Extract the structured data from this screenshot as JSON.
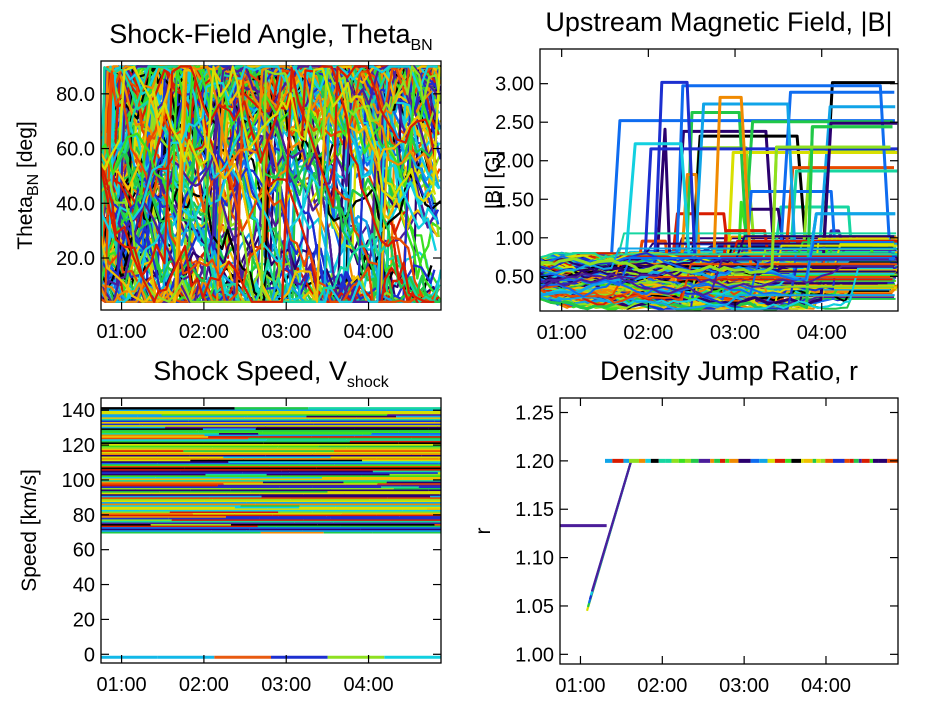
{
  "chart_data": [
    {
      "id": "theta",
      "type": "line",
      "title": "Shock-Field Angle, Theta",
      "title_sub": "BN",
      "ylabel": "Theta",
      "ylabel_sub": "BN",
      "ylabel_unit": " [deg]",
      "xlim": [
        0.75,
        4.88
      ],
      "ylim": [
        1.0,
        92.0
      ],
      "x_ticks": [
        1,
        2,
        3,
        4
      ],
      "x_tick_labels": [
        "01:00",
        "02:00",
        "03:00",
        "04:00"
      ],
      "y_ticks": [
        20,
        40,
        60,
        80
      ],
      "y_tick_labels": [
        "20.0",
        "40.0",
        "60.0",
        "80.0"
      ],
      "grid": false,
      "legend": "none",
      "series_count": 300,
      "palette": "rainbow",
      "note_pattern": "hundreds of field-line traces bounded between ~5 and 90 deg"
    },
    {
      "id": "bfield",
      "type": "line",
      "title": "Upstream Magnetic Field, |B|",
      "ylabel": "|B| [G]",
      "xlim": [
        0.75,
        4.88
      ],
      "ylim": [
        0.05,
        3.45
      ],
      "x_ticks": [
        1,
        2,
        3,
        4
      ],
      "x_tick_labels": [
        "01:00",
        "02:00",
        "03:00",
        "04:00"
      ],
      "y_ticks": [
        0.5,
        1.0,
        1.5,
        2.0,
        2.5,
        3.0
      ],
      "y_tick_labels": [
        "0.50",
        "1.00",
        "1.50",
        "2.00",
        "2.50",
        "3.00"
      ],
      "grid": false,
      "legend": "none",
      "series_count": 300,
      "palette": "rainbow"
    },
    {
      "id": "vshock",
      "type": "line",
      "title": "Shock Speed, V",
      "title_sub": "shock",
      "ylabel": "Speed [km/s]",
      "xlim": [
        0.75,
        4.88
      ],
      "ylim": [
        -5,
        147
      ],
      "x_ticks": [
        1,
        2,
        3,
        4
      ],
      "x_tick_labels": [
        "01:00",
        "02:00",
        "03:00",
        "04:00"
      ],
      "y_ticks": [
        0,
        20,
        40,
        60,
        80,
        100,
        120,
        140
      ],
      "y_tick_labels": [
        "0",
        "20",
        "40",
        "60",
        "80",
        "100",
        "120",
        "140"
      ],
      "grid": false,
      "legend": "none",
      "speed_band": [
        70,
        142
      ],
      "zero_line": 0,
      "palette": "rainbow"
    },
    {
      "id": "ratio",
      "type": "line",
      "title": "Density Jump Ratio, r",
      "ylabel": "r",
      "xlim": [
        0.75,
        4.88
      ],
      "ylim": [
        0.99,
        1.265
      ],
      "x_ticks": [
        1,
        2,
        3,
        4
      ],
      "x_tick_labels": [
        "01:00",
        "02:00",
        "03:00",
        "04:00"
      ],
      "y_ticks": [
        1.0,
        1.05,
        1.1,
        1.15,
        1.2,
        1.25
      ],
      "y_tick_labels": [
        "1.00",
        "1.05",
        "1.10",
        "1.15",
        "1.20",
        "1.25"
      ],
      "grid": false,
      "legend": "none",
      "plateau_value": 1.2,
      "step_value": 1.133,
      "ramp_start": [
        1.08,
        1.045
      ],
      "ramp_end": [
        1.62,
        1.2
      ],
      "palette": "rainbow"
    }
  ]
}
